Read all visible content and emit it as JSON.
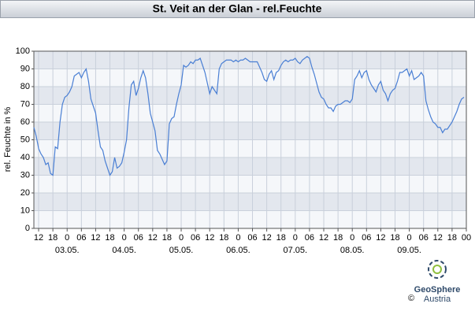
{
  "chart_data": {
    "type": "line",
    "title": "St. Veit an der Glan - rel.Feuchte",
    "y_label": "rel. Feuchte in %",
    "color": "#4a7fd4",
    "grid": true,
    "ylim": [
      0,
      100
    ],
    "yticks": [
      0,
      10,
      20,
      30,
      40,
      50,
      60,
      70,
      80,
      90,
      100
    ],
    "xlim": [
      -14,
      168
    ],
    "xticks": [
      {
        "value": -12,
        "label": "12"
      },
      {
        "value": -6,
        "label": "18"
      },
      {
        "value": 0,
        "label": "0"
      },
      {
        "value": 6,
        "label": "06"
      },
      {
        "value": 12,
        "label": "12"
      },
      {
        "value": 18,
        "label": "18"
      },
      {
        "value": 24,
        "label": "0"
      },
      {
        "value": 30,
        "label": "06"
      },
      {
        "value": 36,
        "label": "12"
      },
      {
        "value": 42,
        "label": "18"
      },
      {
        "value": 48,
        "label": "0"
      },
      {
        "value": 54,
        "label": "06"
      },
      {
        "value": 60,
        "label": "12"
      },
      {
        "value": 66,
        "label": "18"
      },
      {
        "value": 72,
        "label": "0"
      },
      {
        "value": 78,
        "label": "06"
      },
      {
        "value": 84,
        "label": "12"
      },
      {
        "value": 90,
        "label": "18"
      },
      {
        "value": 96,
        "label": "0"
      },
      {
        "value": 102,
        "label": "06"
      },
      {
        "value": 108,
        "label": "12"
      },
      {
        "value": 114,
        "label": "18"
      },
      {
        "value": 120,
        "label": "0"
      },
      {
        "value": 126,
        "label": "06"
      },
      {
        "value": 132,
        "label": "12"
      },
      {
        "value": 138,
        "label": "18"
      },
      {
        "value": 144,
        "label": "0"
      },
      {
        "value": 150,
        "label": "06"
      },
      {
        "value": 156,
        "label": "12"
      },
      {
        "value": 162,
        "label": "18"
      },
      {
        "value": 168,
        "label": "00"
      }
    ],
    "date_labels": [
      {
        "value": 0,
        "label": "03.05."
      },
      {
        "value": 24,
        "label": "04.05."
      },
      {
        "value": 48,
        "label": "05.05."
      },
      {
        "value": 72,
        "label": "06.05."
      },
      {
        "value": 96,
        "label": "07.05."
      },
      {
        "value": 120,
        "label": "08.05."
      },
      {
        "value": 144,
        "label": "09.05."
      }
    ],
    "x": [
      -14,
      -13,
      -12,
      -11,
      -10,
      -9,
      -8,
      -7,
      -6,
      -5,
      -4,
      -3,
      -2,
      -1,
      0,
      1,
      2,
      3,
      4,
      5,
      6,
      7,
      8,
      9,
      10,
      11,
      12,
      13,
      14,
      15,
      16,
      17,
      18,
      19,
      20,
      21,
      22,
      23,
      24,
      25,
      26,
      27,
      28,
      29,
      30,
      31,
      32,
      33,
      34,
      35,
      36,
      37,
      38,
      39,
      40,
      41,
      42,
      43,
      44,
      45,
      46,
      47,
      48,
      49,
      50,
      51,
      52,
      53,
      54,
      55,
      56,
      57,
      58,
      59,
      60,
      61,
      62,
      63,
      64,
      65,
      66,
      67,
      68,
      69,
      70,
      71,
      72,
      73,
      74,
      75,
      76,
      77,
      78,
      79,
      80,
      81,
      82,
      83,
      84,
      85,
      86,
      87,
      88,
      89,
      90,
      91,
      92,
      93,
      94,
      95,
      96,
      97,
      98,
      99,
      100,
      101,
      102,
      103,
      104,
      105,
      106,
      107,
      108,
      109,
      110,
      111,
      112,
      113,
      114,
      115,
      116,
      117,
      118,
      119,
      120,
      121,
      122,
      123,
      124,
      125,
      126,
      127,
      128,
      129,
      130,
      131,
      132,
      133,
      134,
      135,
      136,
      137,
      138,
      139,
      140,
      141,
      142,
      143,
      144,
      145,
      146,
      147,
      148,
      149,
      150,
      151,
      152,
      153,
      154,
      155,
      156,
      157,
      158,
      159,
      160,
      161,
      162,
      163,
      164,
      165,
      166,
      167
    ],
    "values": [
      57,
      52,
      45,
      42,
      40,
      36,
      37,
      31,
      30,
      46,
      45,
      60,
      70,
      74,
      75,
      77,
      80,
      86,
      87,
      88,
      85,
      88,
      90,
      83,
      73,
      69,
      65,
      55,
      46,
      44,
      38,
      34,
      30,
      32,
      40,
      34,
      35,
      37,
      43,
      50,
      68,
      81,
      83,
      75,
      79,
      85,
      89,
      85,
      76,
      65,
      60,
      55,
      44,
      42,
      39,
      36,
      38,
      59,
      62,
      63,
      70,
      76,
      81,
      92,
      91,
      92,
      94,
      93,
      95,
      95,
      96,
      92,
      88,
      82,
      76,
      80,
      78,
      76,
      90,
      93,
      94,
      95,
      95,
      95,
      94,
      95,
      94,
      95,
      95,
      96,
      95,
      94,
      94,
      94,
      94,
      91,
      88,
      84,
      83,
      87,
      89,
      84,
      88,
      89,
      92,
      94,
      95,
      94,
      95,
      95,
      96,
      94,
      93,
      95,
      96,
      97,
      96,
      91,
      87,
      82,
      77,
      74,
      73,
      70,
      68,
      68,
      66,
      69,
      70,
      70,
      71,
      72,
      72,
      71,
      73,
      84,
      86,
      89,
      85,
      88,
      89,
      84,
      81,
      79,
      77,
      81,
      83,
      78,
      76,
      72,
      76,
      78,
      79,
      83,
      88,
      88,
      89,
      90,
      86,
      89,
      84,
      85,
      86,
      88,
      86,
      72,
      67,
      63,
      60,
      59,
      57,
      57,
      54,
      56,
      56,
      58,
      60,
      63,
      66,
      70,
      73,
      74
    ]
  },
  "logo": {
    "name": "GeoSphere",
    "sub": "Austria",
    "copyright": "©"
  }
}
